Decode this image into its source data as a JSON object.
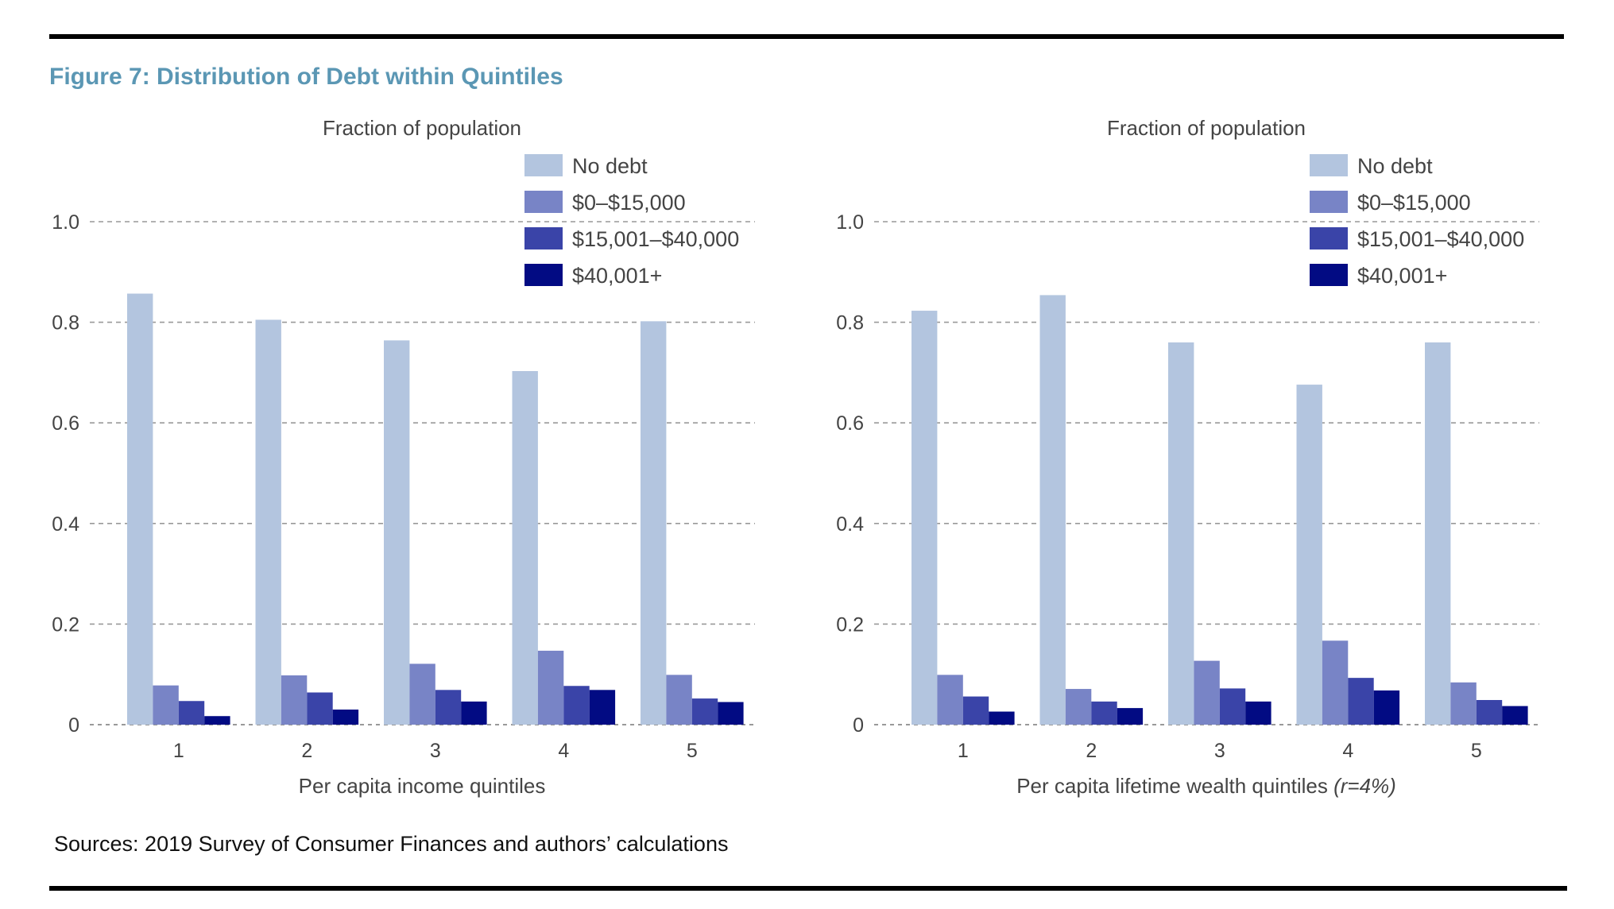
{
  "figure_title": "Figure 7: Distribution of Debt within Quintiles",
  "source_note": "Sources: 2019 Survey of Consumer Finances and authors’ calculations",
  "colors": {
    "title": "#5b97b4",
    "series": [
      "#b3c5df",
      "#7884c6",
      "#3a44a8",
      "#020b83"
    ],
    "grid": "#999999"
  },
  "chart_data": [
    {
      "type": "bar",
      "ylabel": "Fraction of population",
      "xlabel": "Per capita income quintiles",
      "xlabel_note": "",
      "categories": [
        "1",
        "2",
        "3",
        "4",
        "5"
      ],
      "ylim": [
        0,
        1.0
      ],
      "yticks": [
        0,
        0.2,
        0.4,
        0.6,
        0.8,
        1.0
      ],
      "ytick_labels": [
        "0",
        "0.2",
        "0.4",
        "0.6",
        "0.8",
        "1.0"
      ],
      "grid": true,
      "legend_position": "top-right",
      "series": [
        {
          "name": "No debt",
          "values": [
            0.857,
            0.805,
            0.764,
            0.703,
            0.802
          ]
        },
        {
          "name": "$0–$15,000",
          "values": [
            0.078,
            0.098,
            0.121,
            0.147,
            0.099
          ]
        },
        {
          "name": "$15,001–$40,000",
          "values": [
            0.047,
            0.064,
            0.069,
            0.077,
            0.052
          ]
        },
        {
          "name": "$40,001+",
          "values": [
            0.017,
            0.03,
            0.046,
            0.069,
            0.045
          ]
        }
      ]
    },
    {
      "type": "bar",
      "ylabel": "Fraction of population",
      "xlabel": "Per capita lifetime wealth quintiles ",
      "xlabel_note": "(r=4%)",
      "categories": [
        "1",
        "2",
        "3",
        "4",
        "5"
      ],
      "ylim": [
        0,
        1.0
      ],
      "yticks": [
        0,
        0.2,
        0.4,
        0.6,
        0.8,
        1.0
      ],
      "ytick_labels": [
        "0",
        "0.2",
        "0.4",
        "0.6",
        "0.8",
        "1.0"
      ],
      "grid": true,
      "legend_position": "top-right",
      "series": [
        {
          "name": "No debt",
          "values": [
            0.823,
            0.854,
            0.76,
            0.676,
            0.76
          ]
        },
        {
          "name": "$0–$15,000",
          "values": [
            0.099,
            0.071,
            0.127,
            0.167,
            0.084
          ]
        },
        {
          "name": "$15,001–$40,000",
          "values": [
            0.056,
            0.046,
            0.072,
            0.093,
            0.049
          ]
        },
        {
          "name": "$40,001+",
          "values": [
            0.026,
            0.033,
            0.046,
            0.068,
            0.037
          ]
        }
      ]
    }
  ]
}
